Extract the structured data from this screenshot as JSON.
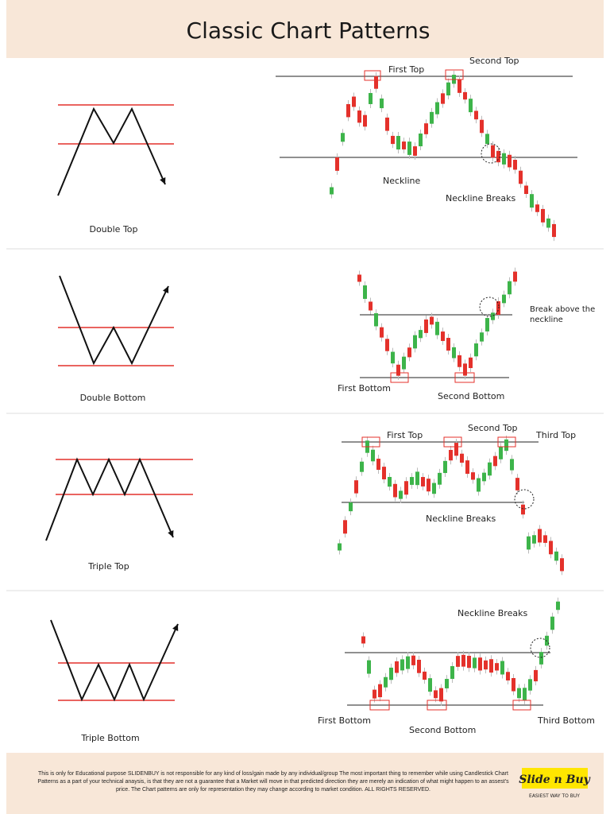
{
  "header": {
    "title": "Classic Chart Patterns"
  },
  "patterns": [
    {
      "name": "Double Top",
      "annotations": [
        "First Top",
        "Second Top",
        "Neckline",
        "Neckline Breaks"
      ]
    },
    {
      "name": "Double Bottom",
      "annotations": [
        "First Bottom",
        "Second Bottom",
        "Break above the neckline"
      ]
    },
    {
      "name": "Triple Top",
      "annotations": [
        "First Top",
        "Second Top",
        "Third Top",
        "Neckline Breaks"
      ]
    },
    {
      "name": "Triple Bottom",
      "annotations": [
        "Neckline Breaks",
        "First Bottom",
        "Second Bottom",
        "Third Bottom"
      ]
    }
  ],
  "footer": {
    "disclaimer": "This is only for Educational purpose SLIDENBUY is not responsible for any kind of loss/gain made by any individual/group The most important thing to remember while using Candlestick Chart Patterns as a part of your technical anaysis, is that they are not a guarantee that a Market will move in that predicted direction they are merely an indication of what might happen to an assest's price. The Chart patterns are only for representation they may change according to market condition. ALL RIGHTS RESERVED.",
    "logo": "Slide n Buy",
    "tagline": "EASIEST WAY TO BUY"
  }
}
